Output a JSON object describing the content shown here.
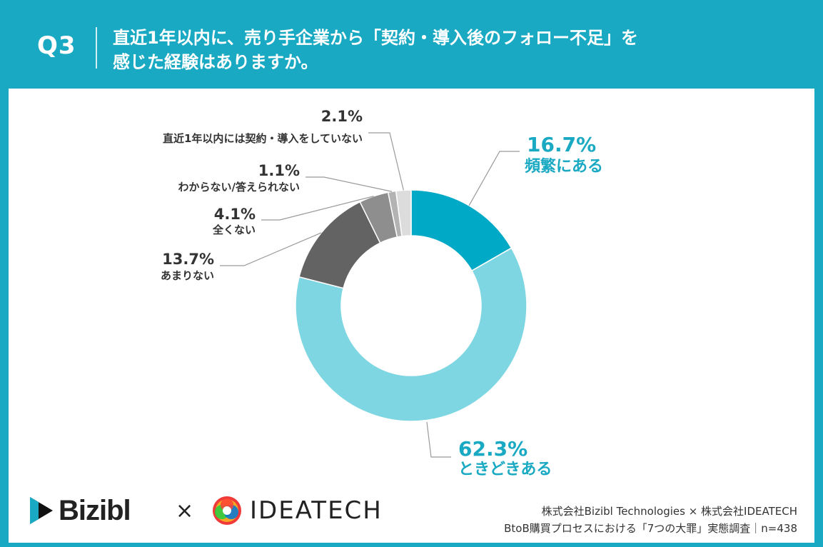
{
  "header": {
    "q_label": "Q3",
    "title_line1": "直近1年以内に、売り手企業から「契約・導入後のフォロー不足」を",
    "title_line2": "感じた経験はありますか。"
  },
  "chart_data": {
    "type": "pie",
    "donut": true,
    "categories": [
      "頻繁にある",
      "ときどきある",
      "あまりない",
      "全くない",
      "わからない/答えられない",
      "直近1年以内には契約・導入をしていない"
    ],
    "values": [
      16.7,
      62.3,
      13.7,
      4.1,
      1.1,
      2.1
    ],
    "labels": [
      "16.7%",
      "62.3%",
      "13.7%",
      "4.1%",
      "1.1%",
      "2.1%"
    ],
    "colors": [
      "#00a9c6",
      "#7dd6e1",
      "#636363",
      "#8e8e8e",
      "#b3b3b3",
      "#dcdcdc"
    ],
    "label_colors": [
      "#1aa9c2",
      "#1aa9c2",
      "#333333",
      "#333333",
      "#333333",
      "#333333"
    ]
  },
  "footer": {
    "brand1": "Bizibl",
    "times": "×",
    "brand2": "IDEATECH",
    "credit_line1": "株式会社Bizibl Technologies × 株式会社IDEATECH",
    "credit_line2": "BtoB購買プロセスにおける「7つの大罪」実態調査｜n=438"
  }
}
